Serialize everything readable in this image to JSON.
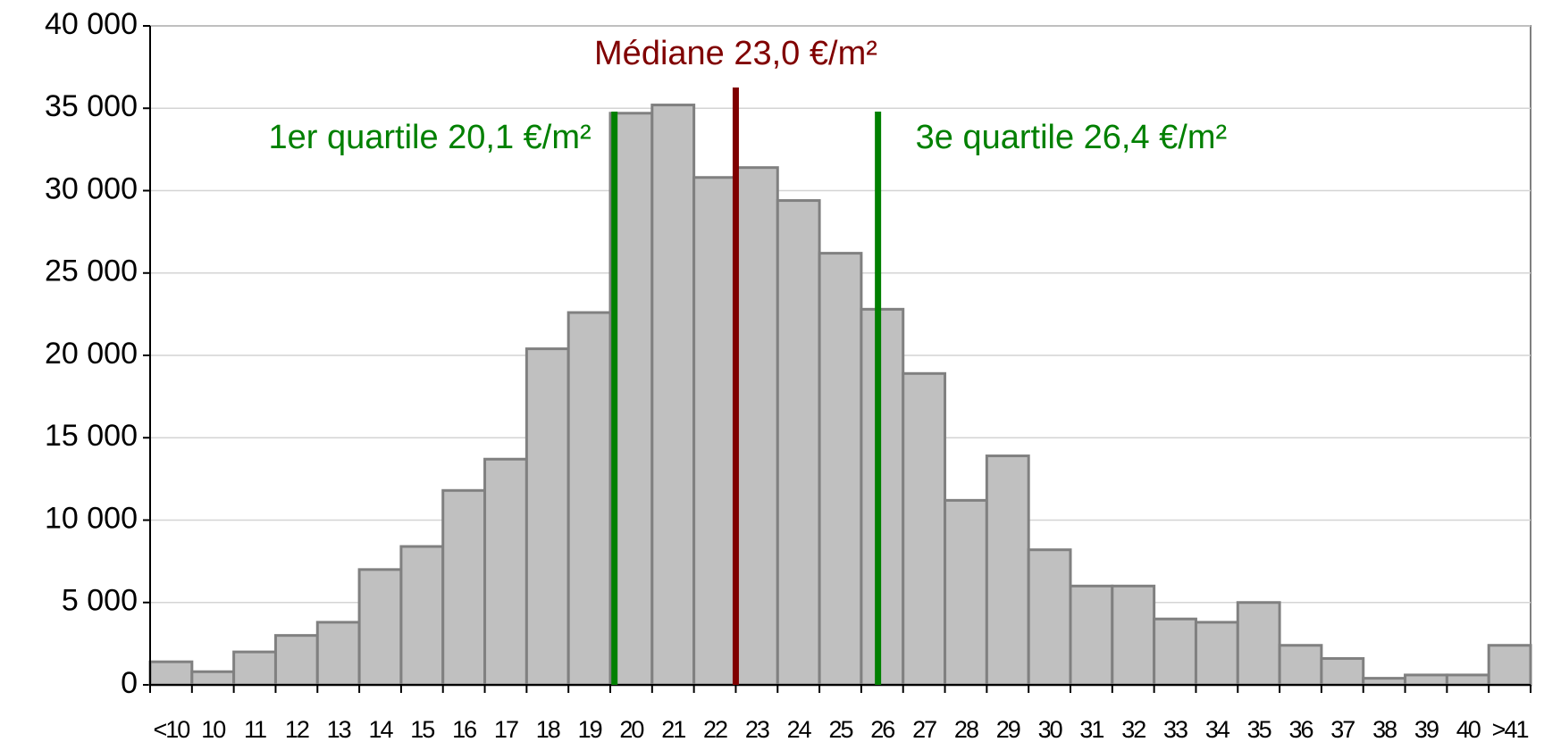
{
  "chart_data": {
    "type": "bar",
    "categories": [
      "<10",
      "10",
      "11",
      "12",
      "13",
      "14",
      "15",
      "16",
      "17",
      "18",
      "19",
      "20",
      "21",
      "22",
      "23",
      "24",
      "25",
      "26",
      "27",
      "28",
      "29",
      "30",
      "31",
      "32",
      "33",
      "34",
      "35",
      "36",
      "37",
      "38",
      "39",
      "40",
      ">41"
    ],
    "values": [
      1400,
      800,
      2000,
      3000,
      3800,
      7000,
      8400,
      11800,
      13700,
      20400,
      22600,
      34700,
      35200,
      30800,
      31400,
      29400,
      26200,
      22800,
      18900,
      11200,
      13900,
      8200,
      6000,
      6000,
      4000,
      3800,
      5000,
      2400,
      1600,
      400,
      600,
      600,
      2400
    ],
    "color": "#c0c0c0",
    "ylim": [
      0,
      40000
    ],
    "yticks": [
      {
        "value": 0,
        "label": "0"
      },
      {
        "value": 5000,
        "label": "5 000"
      },
      {
        "value": 10000,
        "label": "10 000"
      },
      {
        "value": 15000,
        "label": "15 000"
      },
      {
        "value": 20000,
        "label": "20 000"
      },
      {
        "value": 25000,
        "label": "25 000"
      },
      {
        "value": 30000,
        "label": "30 000"
      },
      {
        "value": 35000,
        "label": "35 000"
      },
      {
        "value": 40000,
        "label": "40 000"
      }
    ],
    "grid": true,
    "annotations": [
      {
        "text": "1er quartile 20,1  €/m²",
        "x": 20.1,
        "color": "#008000"
      },
      {
        "text": "Médiane 23,0 €/m²",
        "x": 23.0,
        "color": "#800000"
      },
      {
        "text": "3e quartile 26,4 €/m²",
        "x": 26.4,
        "color": "#008000"
      }
    ]
  }
}
